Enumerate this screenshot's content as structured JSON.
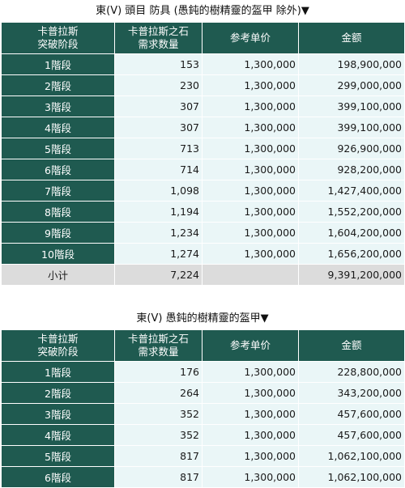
{
  "tables": [
    {
      "title": "東(V) 頭目 防具 (愚鈍的樹精靈的盔甲 除外)▼",
      "headers": {
        "stage": "卡普拉斯\n突破阶段",
        "qty": "卡普拉斯之石\n需求数量",
        "price": "参考单价",
        "amount": "金额"
      },
      "rows": [
        {
          "stage": "1階段",
          "qty": "153",
          "price": "1,300,000",
          "amount": "198,900,000"
        },
        {
          "stage": "2階段",
          "qty": "230",
          "price": "1,300,000",
          "amount": "299,000,000"
        },
        {
          "stage": "3階段",
          "qty": "307",
          "price": "1,300,000",
          "amount": "399,100,000"
        },
        {
          "stage": "4階段",
          "qty": "307",
          "price": "1,300,000",
          "amount": "399,100,000"
        },
        {
          "stage": "5階段",
          "qty": "713",
          "price": "1,300,000",
          "amount": "926,900,000"
        },
        {
          "stage": "6階段",
          "qty": "714",
          "price": "1,300,000",
          "amount": "928,200,000"
        },
        {
          "stage": "7階段",
          "qty": "1,098",
          "price": "1,300,000",
          "amount": "1,427,400,000"
        },
        {
          "stage": "8階段",
          "qty": "1,194",
          "price": "1,300,000",
          "amount": "1,552,200,000"
        },
        {
          "stage": "9階段",
          "qty": "1,234",
          "price": "1,300,000",
          "amount": "1,604,200,000"
        },
        {
          "stage": "10階段",
          "qty": "1,274",
          "price": "1,300,000",
          "amount": "1,656,200,000"
        }
      ],
      "total": {
        "label": "小计",
        "qty": "7,224",
        "price": "",
        "amount": "9,391,200,000"
      }
    },
    {
      "title": "東(V) 愚鈍的樹精靈的盔甲▼",
      "headers": {
        "stage": "卡普拉斯\n突破阶段",
        "qty": "卡普拉斯之石\n需求数量",
        "price": "参考单价",
        "amount": "金额"
      },
      "rows": [
        {
          "stage": "1階段",
          "qty": "176",
          "price": "1,300,000",
          "amount": "228,800,000"
        },
        {
          "stage": "2階段",
          "qty": "264",
          "price": "1,300,000",
          "amount": "343,200,000"
        },
        {
          "stage": "3階段",
          "qty": "352",
          "price": "1,300,000",
          "amount": "457,600,000"
        },
        {
          "stage": "4階段",
          "qty": "352",
          "price": "1,300,000",
          "amount": "457,600,000"
        },
        {
          "stage": "5階段",
          "qty": "817",
          "price": "1,300,000",
          "amount": "1,062,100,000"
        },
        {
          "stage": "6階段",
          "qty": "817",
          "price": "1,300,000",
          "amount": "1,062,100,000"
        }
      ]
    }
  ]
}
